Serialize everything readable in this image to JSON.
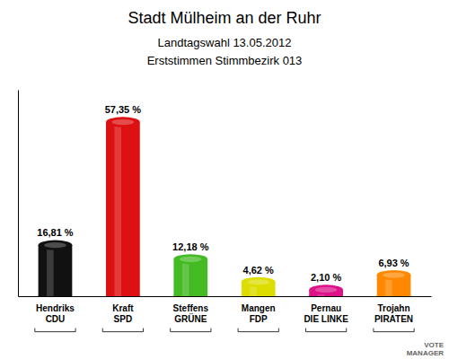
{
  "chart_data": {
    "type": "bar",
    "title": "Stadt Mülheim an der Ruhr",
    "subtitle": [
      "Landtagswahl 13.05.2012",
      "Erststimmen Stimmbezirk 013"
    ],
    "categories": [
      "Hendriks\nCDU",
      "Kraft\nSPD",
      "Steffens\nGRÜNE",
      "Mangen\nFDP",
      "Pernau\nDIE LINKE",
      "Trojahn\nPIRATEN"
    ],
    "values": [
      16.81,
      57.35,
      12.18,
      4.62,
      2.1,
      6.93
    ],
    "value_labels": [
      "16,81 %",
      "57,35 %",
      "12,18 %",
      "4,62 %",
      "2,10 %",
      "6,93 %"
    ],
    "colors": [
      "#111111",
      "#DD1111",
      "#44BB22",
      "#DDDD00",
      "#DD1188",
      "#FF8800"
    ],
    "ylim": [
      0,
      68
    ],
    "yticks": [],
    "data_labels": true,
    "tick_labels": "x",
    "grid": false,
    "annotations": [
      "VOTE\nMANAGER"
    ]
  }
}
